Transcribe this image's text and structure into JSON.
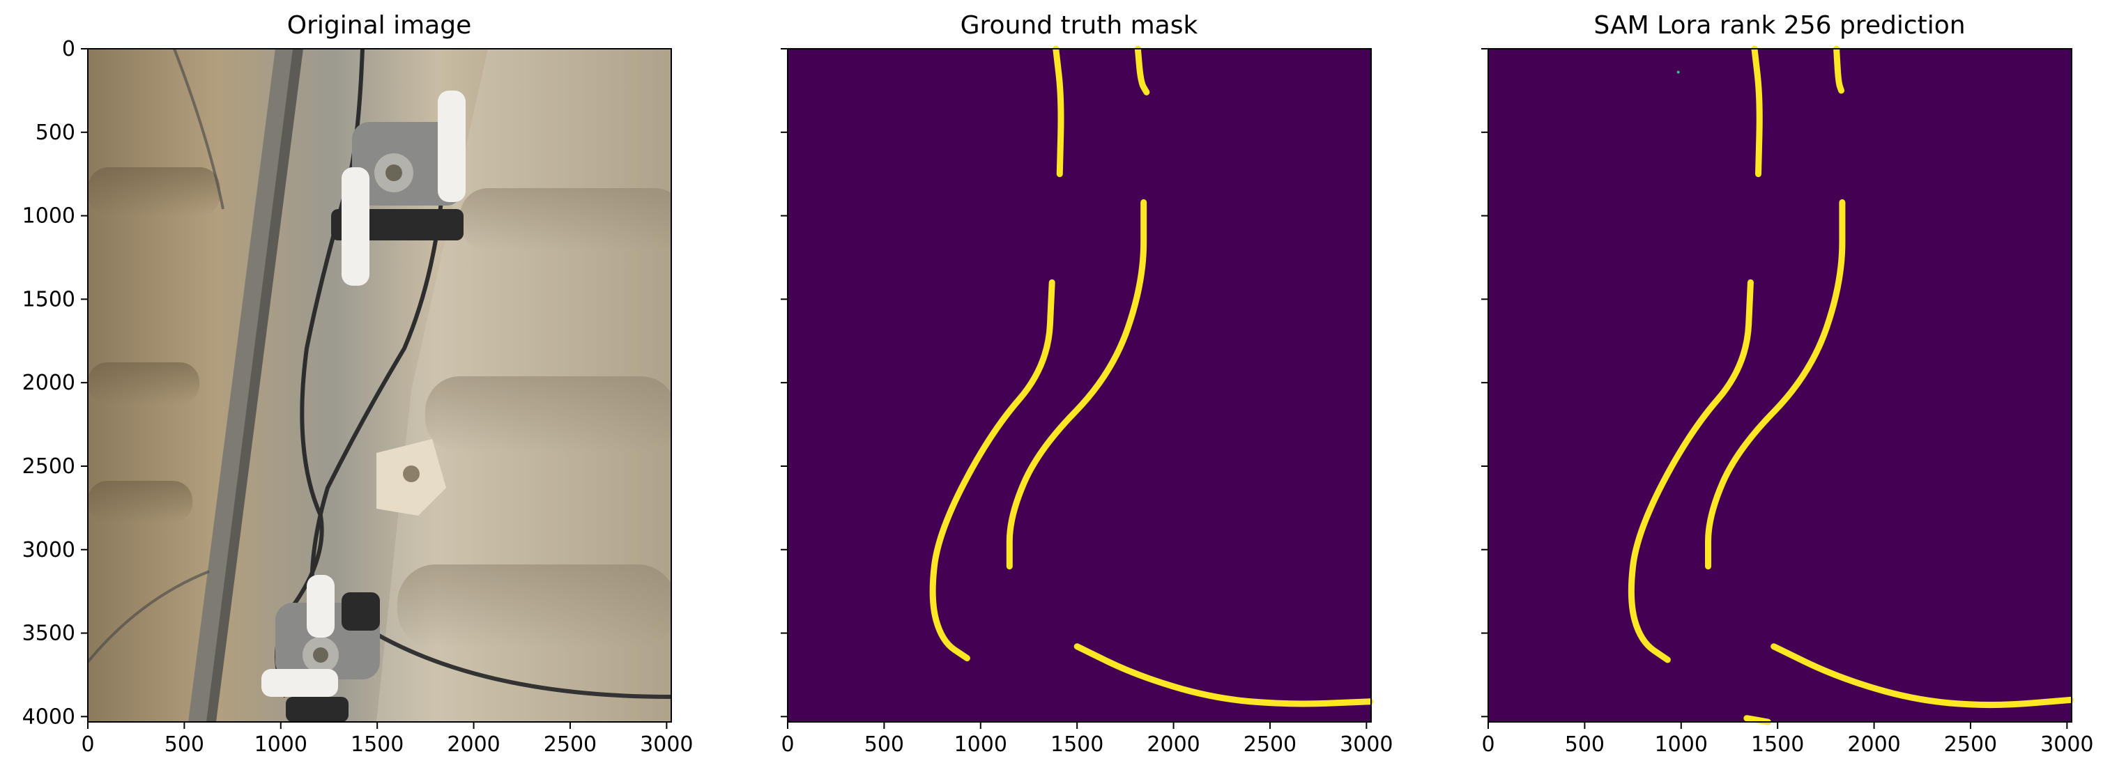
{
  "figure": {
    "panels": [
      {
        "title": "Original image",
        "kind": "photo"
      },
      {
        "title": "Ground truth mask",
        "kind": "mask"
      },
      {
        "title": "SAM Lora rank 256 prediction",
        "kind": "mask"
      }
    ],
    "x_ticks": [
      "0",
      "500",
      "1000",
      "1500",
      "2000",
      "2500",
      "3000"
    ],
    "y_ticks": [
      "0",
      "500",
      "1000",
      "1500",
      "2000",
      "2500",
      "3000",
      "3500",
      "4000"
    ],
    "colors": {
      "mask_background": "#440154",
      "mask_foreground": "#fde725"
    }
  },
  "chart_data": [
    {
      "type": "heatmap",
      "title": "Original image",
      "xlim": [
        0,
        3024
      ],
      "ylim": [
        4032,
        0
      ],
      "x_ticks": [
        0,
        500,
        1000,
        1500,
        2000,
        2500,
        3000
      ],
      "y_ticks": [
        0,
        500,
        1000,
        1500,
        2000,
        2500,
        3000,
        3500,
        4000
      ]
    },
    {
      "type": "heatmap",
      "title": "Ground truth mask",
      "xlim": [
        0,
        3024
      ],
      "ylim": [
        4032,
        0
      ],
      "x_ticks": [
        0,
        500,
        1000,
        1500,
        2000,
        2500,
        3000
      ],
      "y_ticks": [
        0,
        500,
        1000,
        1500,
        2000,
        2500,
        3000,
        3500,
        4000
      ],
      "curves": [
        [
          [
            1390,
            0
          ],
          [
            1420,
            300
          ],
          [
            1410,
            750
          ]
        ],
        [
          [
            1815,
            0
          ],
          [
            1830,
            200
          ],
          [
            1860,
            260
          ]
        ],
        [
          [
            1370,
            1400
          ],
          [
            1350,
            1900
          ],
          [
            1050,
            2300
          ],
          [
            780,
            2900
          ],
          [
            740,
            3300
          ],
          [
            800,
            3550
          ],
          [
            930,
            3650
          ]
        ],
        [
          [
            1845,
            920
          ],
          [
            1845,
            1400
          ],
          [
            1680,
            1950
          ],
          [
            1300,
            2400
          ],
          [
            1150,
            2800
          ],
          [
            1150,
            3100
          ]
        ],
        [
          [
            1500,
            3580
          ],
          [
            1800,
            3750
          ],
          [
            2200,
            3890
          ],
          [
            2600,
            3930
          ],
          [
            3020,
            3910
          ]
        ]
      ]
    },
    {
      "type": "heatmap",
      "title": "SAM Lora rank 256 prediction",
      "xlim": [
        0,
        3024
      ],
      "ylim": [
        4032,
        0
      ],
      "x_ticks": [
        0,
        500,
        1000,
        1500,
        2000,
        2500,
        3000
      ],
      "y_ticks": [
        0,
        500,
        1000,
        1500,
        2000,
        2500,
        3000,
        3500,
        4000
      ],
      "curves": [
        [
          [
            1380,
            0
          ],
          [
            1410,
            300
          ],
          [
            1400,
            750
          ]
        ],
        [
          [
            1805,
            0
          ],
          [
            1815,
            200
          ],
          [
            1830,
            250
          ]
        ],
        [
          [
            1360,
            1400
          ],
          [
            1340,
            1900
          ],
          [
            1040,
            2300
          ],
          [
            770,
            2900
          ],
          [
            730,
            3300
          ],
          [
            790,
            3550
          ],
          [
            930,
            3660
          ]
        ],
        [
          [
            1835,
            920
          ],
          [
            1835,
            1400
          ],
          [
            1670,
            1950
          ],
          [
            1290,
            2400
          ],
          [
            1140,
            2800
          ],
          [
            1140,
            3100
          ]
        ],
        [
          [
            1480,
            3580
          ],
          [
            1800,
            3760
          ],
          [
            2200,
            3900
          ],
          [
            2600,
            3940
          ],
          [
            3020,
            3900
          ]
        ],
        [
          [
            1340,
            4010
          ],
          [
            1450,
            4032
          ]
        ]
      ],
      "specks": [
        [
          985,
          140
        ]
      ]
    }
  ]
}
